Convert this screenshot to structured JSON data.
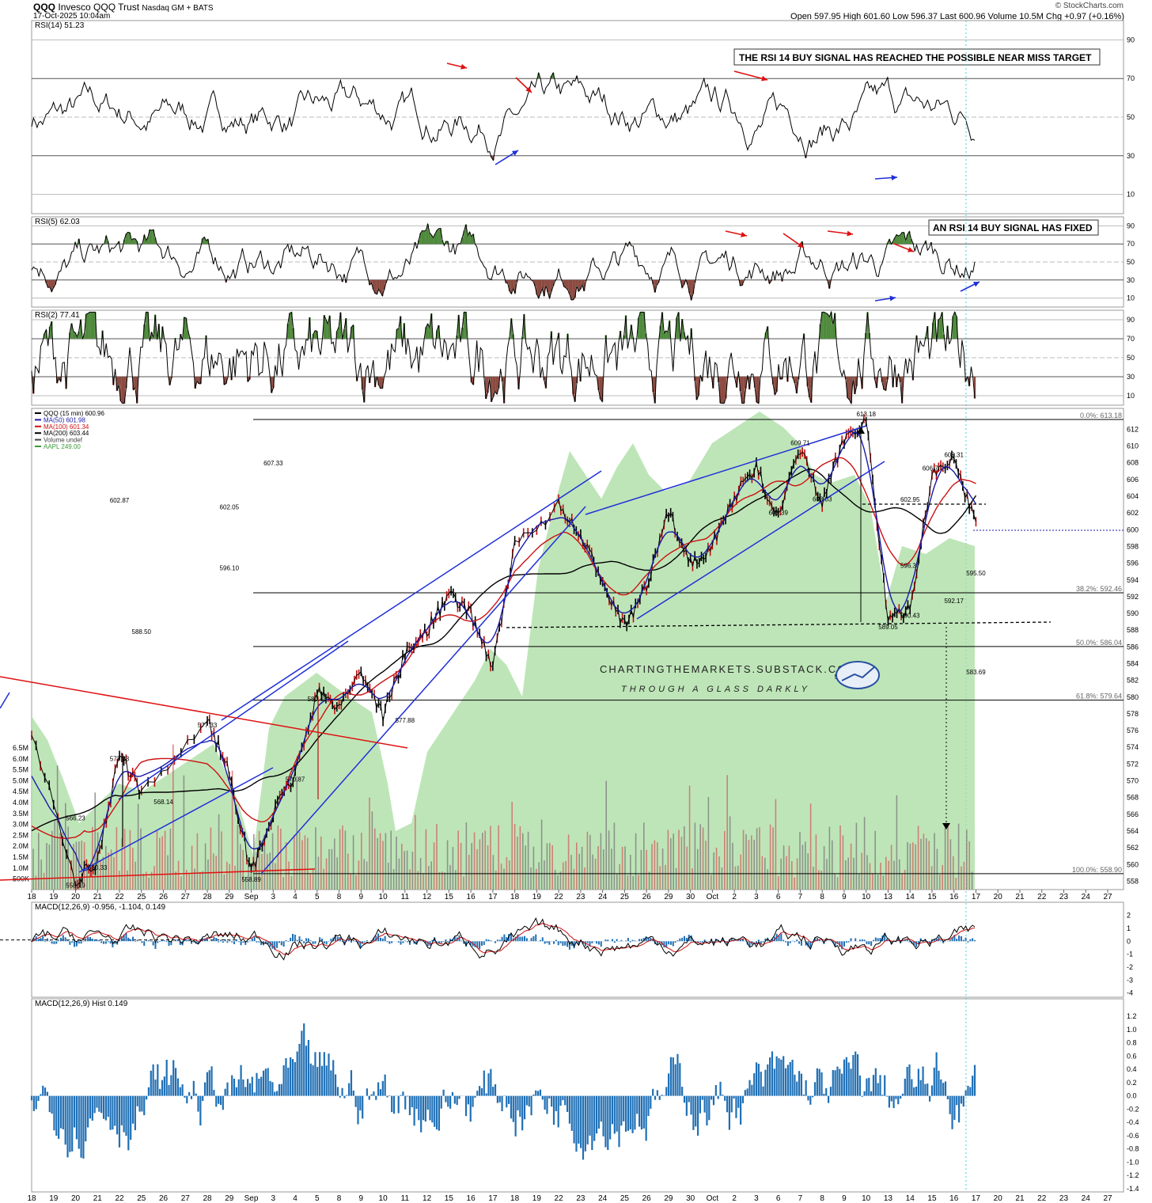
{
  "header": {
    "symbol": "QQQ",
    "name": "Invesco QQQ Trust",
    "exchange": "Nasdaq GM + BATS",
    "datetime": "17-Oct-2025 10:04am",
    "brand": "© StockCharts.com",
    "quote": "Open 597.95  High 601.60  Low 596.37  Last 600.96  Volume 10.5M  Chg +0.97 (+0.16%)"
  },
  "panels": {
    "rsi14": {
      "label": "RSI(14) 51.23",
      "note": "THE RSI 14 BUY SIGNAL HAS REACHED THE POSSIBLE NEAR MISS TARGET",
      "ticks": [
        "90",
        "70",
        "50",
        "30",
        "10"
      ]
    },
    "rsi5": {
      "label": "RSI(5) 62.03",
      "note": "AN RSI 14 BUY SIGNAL HAS FIXED",
      "ticks": [
        "90",
        "70",
        "50",
        "30",
        "10"
      ]
    },
    "rsi2": {
      "label": "RSI(2) 77.41",
      "ticks": [
        "90",
        "70",
        "50",
        "30",
        "10"
      ]
    },
    "price": {
      "legend": [
        "QQQ (15 min) 600.96",
        "MA(50) 601.98",
        "MA(100) 601.34",
        "MA(200) 603.44",
        "Volume undef",
        "AAPL 249.00"
      ],
      "legend_colors": [
        "#000000",
        "#1a1aa8",
        "#cc1111",
        "#000000",
        "#444444",
        "#3a9a3a"
      ]
    },
    "macd": {
      "label": "MACD(12,26,9) -0.956, -1.104, 0.149",
      "ticks": [
        "2",
        "1",
        "0",
        "-1",
        "-2",
        "-3",
        "-4"
      ]
    },
    "hist": {
      "label": "MACD(12,26,9) Hist 0.149",
      "ticks": [
        "1.2",
        "1.0",
        "0.8",
        "0.6",
        "0.4",
        "0.2",
        "0.0",
        "-0.2",
        "-0.4",
        "-0.6",
        "-0.8",
        "-1.0",
        "-1.2",
        "-1.4"
      ]
    }
  },
  "watermark": {
    "line1": "CHARTINGTHEMARKETS.SUBSTACK.COM",
    "line2": "THROUGH A GLASS DARKLY"
  },
  "chart_data": {
    "type": "line",
    "title": "QQQ Invesco QQQ Trust Nasdaq GM + BATS",
    "interval": "15 min",
    "x_ticks": [
      "18",
      "19",
      "20",
      "21",
      "22",
      "25",
      "26",
      "27",
      "28",
      "29",
      "Sep",
      "3",
      "4",
      "5",
      "8",
      "9",
      "10",
      "11",
      "12",
      "15",
      "16",
      "17",
      "18",
      "19",
      "22",
      "23",
      "24",
      "25",
      "26",
      "29",
      "30",
      "Oct",
      "2",
      "3",
      "6",
      "7",
      "8",
      "9",
      "10",
      "13",
      "14",
      "15",
      "16",
      "17",
      "20",
      "21",
      "22",
      "23",
      "24",
      "27"
    ],
    "price_ticks": [
      612,
      610,
      608,
      606,
      604,
      602,
      600,
      598,
      596,
      594,
      592,
      590,
      588,
      586,
      584,
      582,
      580,
      578,
      576,
      574,
      572,
      570,
      568,
      566,
      564,
      562,
      560,
      558
    ],
    "volume_ticks": [
      "6.5M",
      "6.0M",
      "5.5M",
      "5.0M",
      "4.5M",
      "4.0M",
      "3.5M",
      "3.0M",
      "2.5M",
      "2.0M",
      "1.5M",
      "1.0M",
      "500K"
    ],
    "series": [
      {
        "name": "QQQ (15 min)",
        "x": [
          "18",
          "20",
          "21",
          "22",
          "25",
          "28",
          "29",
          "Sep",
          "3",
          "4",
          "5",
          "8",
          "9",
          "10",
          "11",
          "12",
          "15",
          "16",
          "17",
          "18",
          "22",
          "23",
          "24",
          "25",
          "26",
          "29",
          "30",
          "Oct",
          "2",
          "3",
          "6",
          "7",
          "8",
          "9",
          "10",
          "13",
          "14",
          "15",
          "16",
          "17"
        ],
        "values": [
          576.0,
          558.19,
          560.33,
          573.33,
          568.14,
          577.33,
          571.0,
          558.89,
          566.0,
          570.87,
          580.45,
          579.0,
          583.09,
          577.88,
          585.0,
          588.0,
          592.17,
          590.0,
          583.69,
          598.0,
          602.87,
          599.0,
          594.0,
          588.5,
          593.0,
          602.05,
          596.1,
          598.0,
          604.0,
          607.33,
          601.39,
          609.71,
          603.03,
          611.0,
          613.18,
          589.05,
          590.43,
          606.7,
          608.31,
          600.96
        ]
      },
      {
        "name": "MA(50)",
        "values": [
          601.98
        ]
      },
      {
        "name": "MA(100)",
        "values": [
          601.34
        ]
      },
      {
        "name": "MA(200)",
        "values": [
          603.44
        ]
      }
    ],
    "price_labels": [
      {
        "x": "20",
        "value": 558.19,
        "text": "558.19"
      },
      {
        "x": "20",
        "value": 566.23,
        "text": "566.23"
      },
      {
        "x": "21",
        "value": 560.33,
        "text": "560.33"
      },
      {
        "x": "22",
        "value": 573.33,
        "text": "573.33"
      },
      {
        "x": "26",
        "value": 568.14,
        "text": "568.14"
      },
      {
        "x": "28",
        "value": 577.33,
        "text": "577.33"
      },
      {
        "x": "Sep",
        "value": 558.89,
        "text": "558.89"
      },
      {
        "x": "4",
        "value": 570.87,
        "text": "570.87"
      },
      {
        "x": "5",
        "value": 580.45,
        "text": "580.45"
      },
      {
        "x": "9",
        "value": 583.09,
        "text": "583.09"
      },
      {
        "x": "11",
        "value": 577.88,
        "text": "577.88"
      },
      {
        "x": "16",
        "value": 592.17,
        "text": "592.17"
      },
      {
        "x": "17",
        "value": 583.69,
        "text": "583.69"
      },
      {
        "x": "22",
        "value": 602.87,
        "text": "602.87"
      },
      {
        "x": "25",
        "value": 588.5,
        "text": "588.50"
      },
      {
        "x": "29",
        "value": 602.05,
        "text": "602.05"
      },
      {
        "x": "29",
        "value": 596.1,
        "text": "596.10"
      },
      {
        "x": "3",
        "value": 607.33,
        "text": "607.33"
      },
      {
        "x": "6",
        "value": 601.39,
        "text": "601.39"
      },
      {
        "x": "7",
        "value": 609.71,
        "text": "609.71"
      },
      {
        "x": "8",
        "value": 603.03,
        "text": "603.03"
      },
      {
        "x": "10",
        "value": 613.18,
        "text": "613.18"
      },
      {
        "x": "13",
        "value": 589.05,
        "text": "589.05"
      },
      {
        "x": "14",
        "value": 590.43,
        "text": "590.43"
      },
      {
        "x": "14",
        "value": 602.95,
        "text": "602.95"
      },
      {
        "x": "14",
        "value": 596.37,
        "text": "596.37"
      },
      {
        "x": "15",
        "value": 606.7,
        "text": "606.70"
      },
      {
        "x": "16",
        "value": 608.31,
        "text": "608.31"
      },
      {
        "x": "17",
        "value": 595.5,
        "text": "595.50"
      }
    ],
    "fib_levels": [
      {
        "label": "0.0%: 613.18",
        "value": 613.18
      },
      {
        "label": "38.2%: 592.46",
        "value": 592.46
      },
      {
        "label": "50.0%: 586.04",
        "value": 586.04
      },
      {
        "label": "61.8%: 579.64",
        "value": 579.64
      },
      {
        "label": "100.0%: 558.90",
        "value": 558.9
      }
    ],
    "rsi_levels": [
      90,
      70,
      50,
      30,
      10
    ],
    "macd_range": [
      -4,
      2
    ],
    "hist_range": [
      -1.4,
      1.2
    ]
  },
  "colors": {
    "price": "#000000",
    "ma50": "#1a1aa8",
    "ma100": "#cc1111",
    "ma200": "#000000",
    "aapl_fill": "#a8dca0",
    "overbought": "#4f8a3c",
    "oversold": "#8c4a40",
    "macd_hist": "#1f6fb5",
    "signal": "#cc1111",
    "trend_blue": "#1f2fd8",
    "trend_red": "#e01010"
  }
}
